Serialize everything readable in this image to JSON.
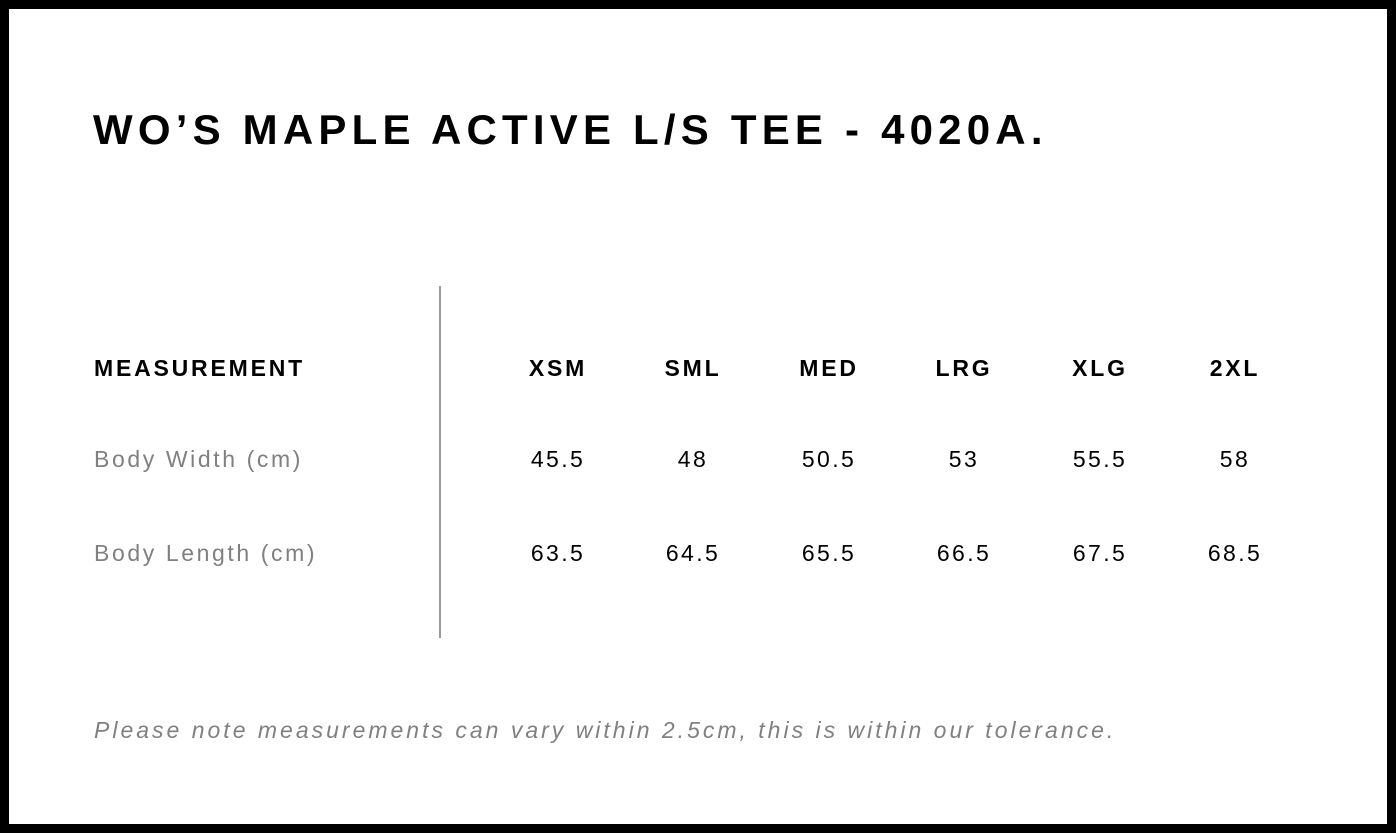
{
  "title": "WO’S MAPLE ACTIVE L/S TEE - 4020A.",
  "table": {
    "header_label": "MEASUREMENT",
    "sizes": [
      "XSM",
      "SML",
      "MED",
      "LRG",
      "XLG",
      "2XL"
    ],
    "rows": [
      {
        "label": "Body Width (cm)",
        "values": [
          "45.5",
          "48",
          "50.5",
          "53",
          "55.5",
          "58"
        ]
      },
      {
        "label": "Body Length (cm)",
        "values": [
          "63.5",
          "64.5",
          "65.5",
          "66.5",
          "67.5",
          "68.5"
        ]
      }
    ]
  },
  "note": "Please note measurements can vary within 2.5cm, this is within our tolerance."
}
